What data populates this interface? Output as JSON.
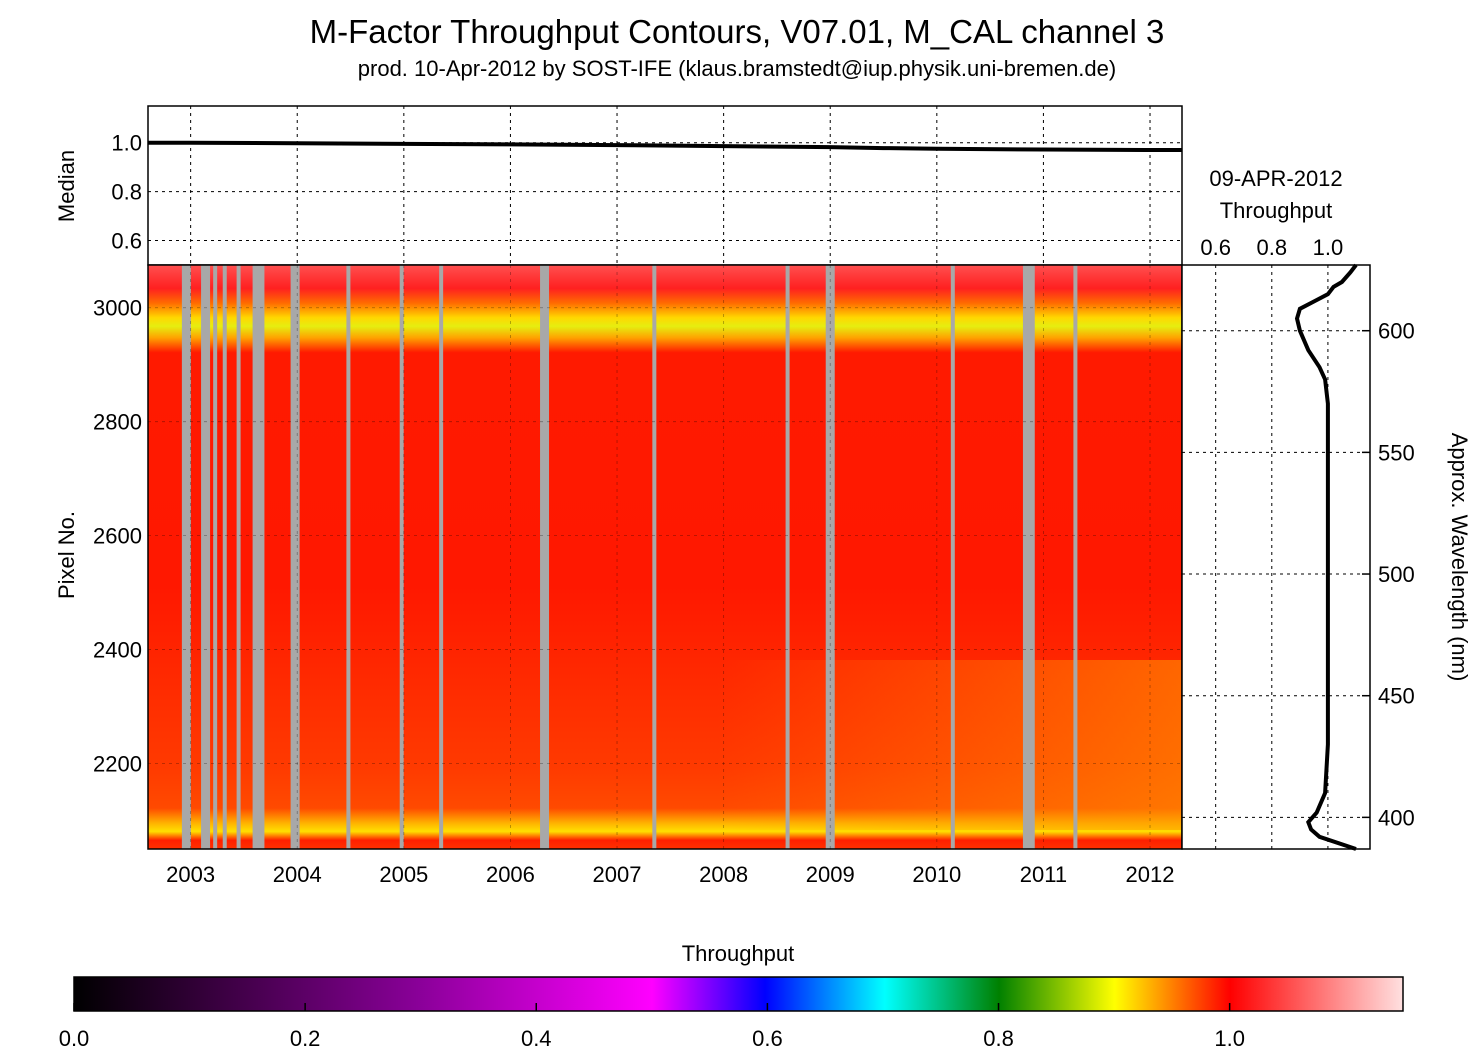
{
  "title": "M-Factor Throughput Contours, V07.01, M_CAL channel 3",
  "subtitle": "prod. 10-Apr-2012 by SOST-IFE (klaus.bramstedt@iup.physik.uni-bremen.de)",
  "chart_data": [
    {
      "type": "line",
      "ylabel": "Median",
      "ylim": [
        0.5,
        1.15
      ],
      "yticks": [
        "0.6",
        "0.8",
        "1.0"
      ],
      "xlim": [
        2002.6,
        2012.3
      ],
      "grid": true,
      "x": [
        2002.6,
        2003.0,
        2004.0,
        2005.0,
        2006.0,
        2007.0,
        2008.0,
        2009.0,
        2009.5,
        2010.0,
        2011.0,
        2012.0,
        2012.3
      ],
      "values": [
        1.0,
        1.0,
        0.998,
        0.995,
        0.993,
        0.99,
        0.986,
        0.982,
        0.978,
        0.975,
        0.972,
        0.97,
        0.97
      ]
    },
    {
      "type": "heatmap",
      "ylabel": "Pixel No.",
      "xlim": [
        2002.6,
        2012.3
      ],
      "ylim": [
        2050,
        3075
      ],
      "xticks": [
        "2003",
        "2004",
        "2005",
        "2006",
        "2007",
        "2008",
        "2009",
        "2010",
        "2011",
        "2012"
      ],
      "yticks": [
        "2200",
        "2400",
        "2600",
        "2800",
        "3000"
      ],
      "grid": true,
      "value_description": "Throughput",
      "bands": [
        {
          "pixel_range": [
            3040,
            3075
          ],
          "throughput": 1.08
        },
        {
          "pixel_range": [
            3000,
            3040
          ],
          "throughput": 1.01
        },
        {
          "pixel_range": [
            2930,
            3000
          ],
          "throughput": 0.9
        },
        {
          "pixel_range": [
            2120,
            2930
          ],
          "throughput": 1.0
        },
        {
          "pixel_range": [
            2070,
            2120
          ],
          "throughput": 0.92
        },
        {
          "pixel_range": [
            2050,
            2070
          ],
          "throughput": 1.0
        }
      ],
      "gap_years": [
        2002.96,
        2003.14,
        2003.23,
        2003.32,
        2003.45,
        2003.6,
        2003.65,
        2003.98,
        2004.48,
        2004.98,
        2005.35,
        2006.32,
        2007.35,
        2008.6,
        2009.0,
        2010.15,
        2010.85,
        2010.9,
        2011.3
      ]
    },
    {
      "type": "line",
      "title": "09-APR-2012",
      "xlabel": "Throughput",
      "ylabel": "Approx. Wavelength (nm)",
      "xlim": [
        0.48,
        1.15
      ],
      "xticks": [
        "0.6",
        "0.8",
        "1.0"
      ],
      "ylim": [
        387,
        627
      ],
      "yticks": [
        "400",
        "450",
        "500",
        "550",
        "600"
      ],
      "grid": true,
      "wavelength_nm": [
        387,
        392,
        395,
        398,
        402,
        410,
        430,
        460,
        500,
        540,
        570,
        580,
        585,
        592,
        600,
        605,
        609,
        612,
        615,
        618,
        620,
        624,
        627
      ],
      "values": [
        1.1,
        0.97,
        0.94,
        0.93,
        0.96,
        0.99,
        1.0,
        1.0,
        1.0,
        1.0,
        1.0,
        0.99,
        0.97,
        0.93,
        0.9,
        0.89,
        0.9,
        0.95,
        1.0,
        1.02,
        1.05,
        1.08,
        1.1
      ]
    },
    {
      "type": "colorbar",
      "label": "Throughput",
      "range": [
        0.0,
        1.15
      ],
      "ticks": [
        "0.0",
        "0.2",
        "0.4",
        "0.6",
        "0.8",
        "1.0"
      ],
      "colors": [
        {
          "v": 0.0,
          "c": "#000000"
        },
        {
          "v": 0.3,
          "c": "#8a0099"
        },
        {
          "v": 0.5,
          "c": "#ff00ff"
        },
        {
          "v": 0.6,
          "c": "#0000ff"
        },
        {
          "v": 0.7,
          "c": "#00ffff"
        },
        {
          "v": 0.8,
          "c": "#008000"
        },
        {
          "v": 0.9,
          "c": "#ffff00"
        },
        {
          "v": 1.0,
          "c": "#ff0000"
        },
        {
          "v": 1.15,
          "c": "#ffe0e0"
        }
      ]
    }
  ]
}
